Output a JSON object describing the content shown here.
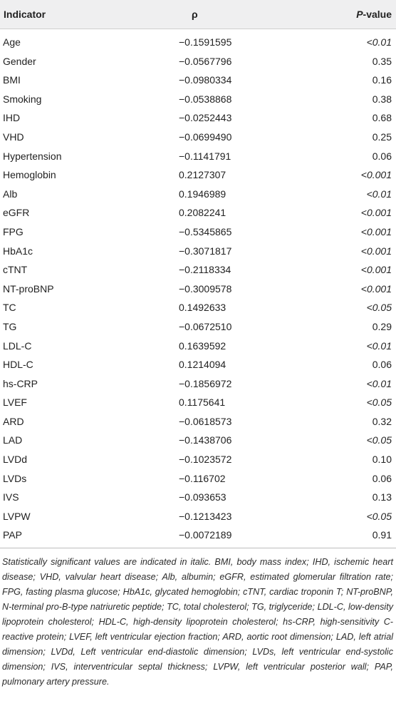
{
  "table": {
    "headers": {
      "indicator": "Indicator",
      "rho": "ρ",
      "p_italic": "P",
      "p_rest": "-value"
    },
    "rows": [
      {
        "indicator": "Age",
        "rho": "−0.1591595",
        "p": "<0.01",
        "sig": true
      },
      {
        "indicator": "Gender",
        "rho": "−0.0567796",
        "p": "0.35",
        "sig": false
      },
      {
        "indicator": "BMI",
        "rho": "−0.0980334",
        "p": "0.16",
        "sig": false
      },
      {
        "indicator": "Smoking",
        "rho": "−0.0538868",
        "p": "0.38",
        "sig": false
      },
      {
        "indicator": "IHD",
        "rho": "−0.0252443",
        "p": "0.68",
        "sig": false
      },
      {
        "indicator": "VHD",
        "rho": "−0.0699490",
        "p": "0.25",
        "sig": false
      },
      {
        "indicator": "Hypertension",
        "rho": "−0.1141791",
        "p": "0.06",
        "sig": false
      },
      {
        "indicator": "Hemoglobin",
        "rho": "0.2127307",
        "p": "<0.001",
        "sig": true
      },
      {
        "indicator": "Alb",
        "rho": "0.1946989",
        "p": "<0.01",
        "sig": true
      },
      {
        "indicator": "eGFR",
        "rho": "0.2082241",
        "p": "<0.001",
        "sig": true
      },
      {
        "indicator": "FPG",
        "rho": "−0.5345865",
        "p": "<0.001",
        "sig": true
      },
      {
        "indicator": "HbA1c",
        "rho": "−0.3071817",
        "p": "<0.001",
        "sig": true
      },
      {
        "indicator": "cTNT",
        "rho": "−0.2118334",
        "p": "<0.001",
        "sig": true
      },
      {
        "indicator": "NT-proBNP",
        "rho": "−0.3009578",
        "p": "<0.001",
        "sig": true
      },
      {
        "indicator": "TC",
        "rho": "0.1492633",
        "p": "<0.05",
        "sig": true
      },
      {
        "indicator": "TG",
        "rho": "−0.0672510",
        "p": "0.29",
        "sig": false
      },
      {
        "indicator": "LDL-C",
        "rho": "0.1639592",
        "p": "<0.01",
        "sig": true
      },
      {
        "indicator": "HDL-C",
        "rho": "0.1214094",
        "p": "0.06",
        "sig": false
      },
      {
        "indicator": "hs-CRP",
        "rho": "−0.1856972",
        "p": "<0.01",
        "sig": true
      },
      {
        "indicator": "LVEF",
        "rho": "0.1175641",
        "p": "<0.05",
        "sig": true
      },
      {
        "indicator": "ARD",
        "rho": "−0.0618573",
        "p": "0.32",
        "sig": false
      },
      {
        "indicator": "LAD",
        "rho": "−0.1438706",
        "p": "<0.05",
        "sig": true
      },
      {
        "indicator": "LVDd",
        "rho": "−0.1023572",
        "p": "0.10",
        "sig": false
      },
      {
        "indicator": "LVDs",
        "rho": "−0.116702",
        "p": "0.06",
        "sig": false
      },
      {
        "indicator": "IVS",
        "rho": "−0.093653",
        "p": "0.13",
        "sig": false
      },
      {
        "indicator": "LVPW",
        "rho": "−0.1213423",
        "p": "<0.05",
        "sig": true
      },
      {
        "indicator": "PAP",
        "rho": "−0.0072189",
        "p": "0.91",
        "sig": false
      }
    ]
  },
  "footnote": "Statistically significant values are indicated in italic. BMI, body mass index; IHD, ischemic heart disease; VHD, valvular heart disease; Alb, albumin; eGFR, estimated glomerular filtration rate; FPG, fasting plasma glucose; HbA1c, glycated hemoglobin; cTNT, cardiac troponin T; NT-proBNP, N-terminal pro-B-type natriuretic peptide; TC, total cholesterol; TG, triglyceride; LDL-C, low-density lipoprotein cholesterol; HDL-C, high-density lipoprotein cholesterol; hs-CRP, high-sensitivity C-reactive protein; LVEF, left ventricular ejection fraction; ARD, aortic root dimension; LAD, left atrial dimension; LVDd, Left ventricular end-diastolic dimension; LVDs, left ventricular end-systolic dimension; IVS, interventricular septal thickness; LVPW, left ventricular posterior wall; PAP, pulmonary artery pressure."
}
